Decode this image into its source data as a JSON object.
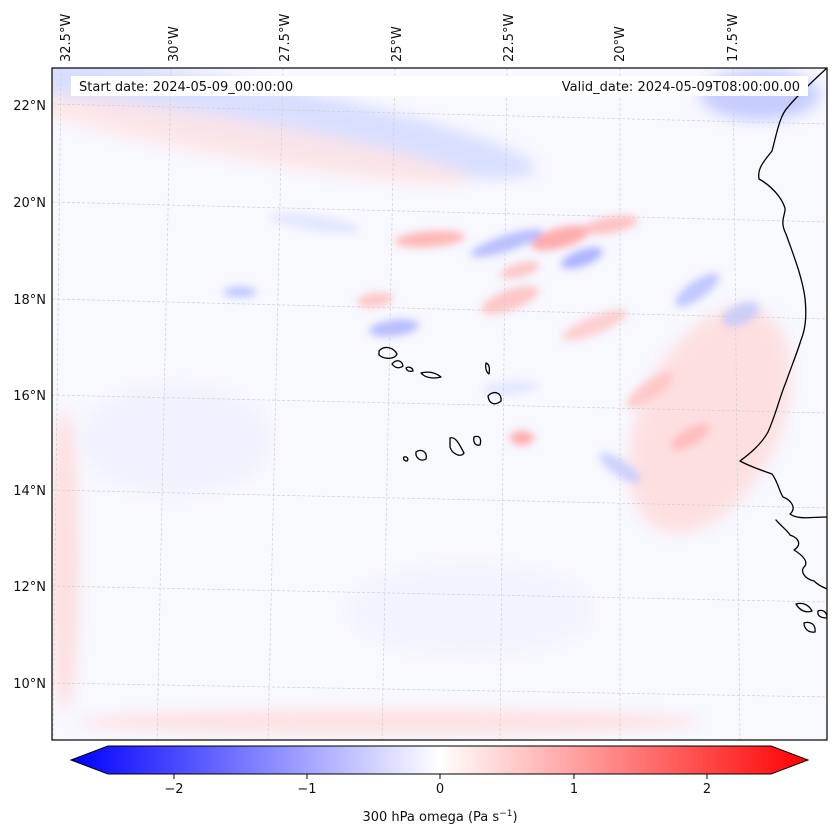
{
  "header": {
    "start_date": "Start date: 2024-05-09_00:00:00",
    "valid_date": "Valid_date: 2024-05-09T08:00:00.00"
  },
  "axes": {
    "lon_labels": [
      "32.5°W",
      "30°W",
      "27.5°W",
      "25°W",
      "22.5°W",
      "20°W",
      "17.5°W"
    ],
    "lat_labels": [
      "22°N",
      "20°N",
      "18°N",
      "16°N",
      "14°N",
      "12°N",
      "10°N"
    ],
    "lon_values": [
      -32.5,
      -30,
      -27.5,
      -25,
      -22.5,
      -20,
      -17.5
    ],
    "lat_values": [
      22,
      20,
      18,
      16,
      14,
      12,
      10
    ],
    "lon_range": [
      -32.5,
      -15.75
    ],
    "lat_range": [
      8.9,
      22.8
    ]
  },
  "colorbar": {
    "ticks": [
      "−2",
      "−1",
      "0",
      "1",
      "2"
    ],
    "tick_values": [
      -2,
      -1,
      0,
      1,
      2
    ],
    "range": [
      -2.6,
      2.6
    ],
    "label_main": "300 hPa omega (Pa s",
    "label_sup": "−1",
    "label_close": ")",
    "negative_color": "#0000ff",
    "positive_color": "#ff0000",
    "neutral_color": "#ffffff"
  },
  "map": {
    "title": "",
    "gridlines": true,
    "coastlines": true,
    "field": "300 hPa omega",
    "region": "Cape Verde / West African coast"
  },
  "colors": {
    "coastline": "#000000",
    "grid": "#c8c8c8",
    "header_bg": "#ffffff"
  }
}
